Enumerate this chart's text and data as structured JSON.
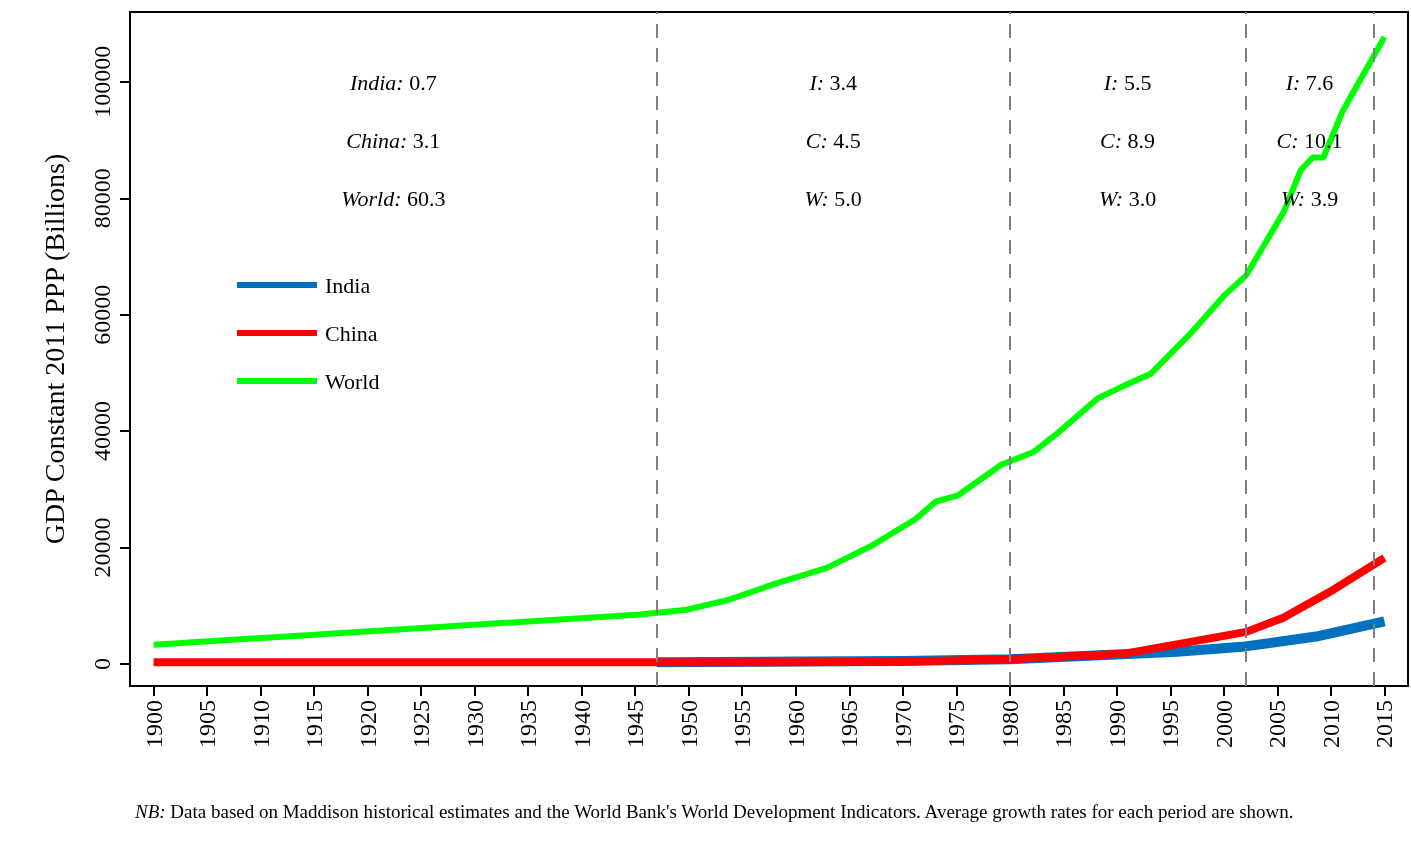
{
  "chart_data": {
    "type": "line",
    "ylabel": "GDP Constant 2011 PPP (Billions)",
    "xlim": [
      1897.8,
      2017.2
    ],
    "xticks": [
      1900,
      1905,
      1910,
      1915,
      1920,
      1925,
      1930,
      1935,
      1940,
      1945,
      1950,
      1955,
      1960,
      1965,
      1970,
      1975,
      1980,
      1985,
      1990,
      1995,
      2000,
      2005,
      2010,
      2015
    ],
    "ylim": [
      -3800,
      112000
    ],
    "yticks": [
      0,
      20000,
      40000,
      60000,
      80000,
      100000
    ],
    "grid": false,
    "legend": "left",
    "marker": "none",
    "line_style": "solid",
    "series": [
      {
        "name": "India",
        "color": "#0070c0",
        "x": [
          1947,
          1960,
          1970,
          1980,
          1990,
          1995.6,
          2002,
          2008.6,
          2015
        ],
        "values": [
          300,
          400,
          500,
          800,
          1600,
          2100,
          3000,
          4700,
          7300
        ]
      },
      {
        "name": "China",
        "color": "#ff0000",
        "x": [
          1900,
          1920,
          1947,
          1960,
          1970,
          1980,
          1990.9,
          2002.1,
          2005.5,
          2010.2,
          2015
        ],
        "values": [
          300,
          300,
          300,
          300,
          400,
          800,
          1800,
          5500,
          7900,
          12700,
          18200
        ]
      },
      {
        "name": "World",
        "color": "#00ff00",
        "x": [
          1900,
          1945.5,
          1949.8,
          1953.7,
          1957.8,
          1962.9,
          1967.1,
          1971.2,
          1973.1,
          1975.1,
          1979.2,
          1982.2,
          1984.5,
          1988.2,
          1990.1,
          1993.2,
          1996.8,
          2000.1,
          2002.1,
          2003.7,
          2005.6,
          2007.2,
          2008.3,
          2009.3,
          2011.1,
          2015
        ],
        "values": [
          3300,
          8500,
          9300,
          11000,
          13600,
          16500,
          20300,
          24900,
          27900,
          28900,
          34200,
          36400,
          39700,
          45600,
          47300,
          49900,
          56600,
          63400,
          66800,
          71800,
          77700,
          84900,
          87000,
          87000,
          95000,
          107700
        ]
      }
    ],
    "ref_lines": [
      {
        "axis": "x",
        "value": 1947,
        "color": "#808080",
        "line_style": "dashed"
      },
      {
        "axis": "x",
        "value": 1980,
        "color": "#808080",
        "line_style": "dashed"
      },
      {
        "axis": "x",
        "value": 2002,
        "color": "#808080",
        "line_style": "dashed"
      },
      {
        "axis": "x",
        "value": 2014,
        "color": "#808080",
        "line_style": "dashed"
      }
    ],
    "annotations": [
      "India: 0.7",
      "China: 3.1",
      "World: 60.3",
      "I: 3.4",
      "C: 4.5",
      "W: 5.0",
      "I: 5.5",
      "C: 8.9",
      "W: 3.0",
      "I: 7.6",
      "C: 10.1",
      "W: 3.9",
      "NB: Data based on Maddison historical estimates and the World Bank's World Development Indicators. Average growth rates for each period are shown."
    ]
  }
}
